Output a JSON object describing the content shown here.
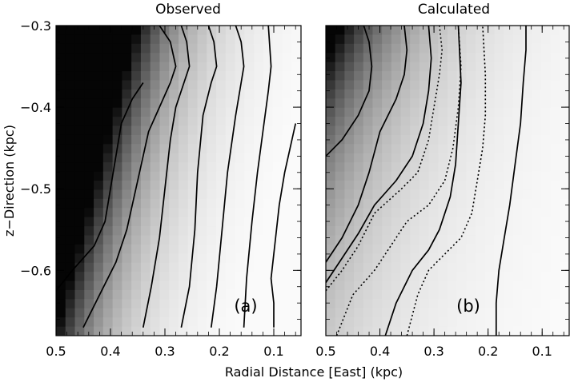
{
  "chart_data": [
    {
      "type": "heatmap",
      "title": "Observed",
      "panel_label": "(a)",
      "xlabel": "Radial Distance [East] (kpc)",
      "ylabel": "z−Direction (kpc)",
      "xlim": [
        0.5,
        0.05
      ],
      "ylim": [
        -0.68,
        -0.3
      ],
      "x_ticks": [
        "0.5",
        "0.4",
        "0.3",
        "0.2",
        "0.1"
      ],
      "y_ticks": [
        "−0.3",
        "−0.4",
        "−0.5",
        "−0.6"
      ],
      "x_tick_values": [
        0.5,
        0.4,
        0.3,
        0.2,
        0.1
      ],
      "y_tick_values": [
        -0.3,
        -0.4,
        -0.5,
        -0.6
      ],
      "grayscale": "dark = high intensity",
      "contour_style": "solid",
      "contours": [
        [
          [
            0.5,
            -0.625
          ],
          [
            0.47,
            -0.6
          ],
          [
            0.43,
            -0.57
          ],
          [
            0.41,
            -0.54
          ],
          [
            0.4,
            -0.5
          ],
          [
            0.39,
            -0.46
          ],
          [
            0.38,
            -0.42
          ],
          [
            0.36,
            -0.39
          ],
          [
            0.34,
            -0.37
          ]
        ],
        [
          [
            0.45,
            -0.67
          ],
          [
            0.42,
            -0.63
          ],
          [
            0.39,
            -0.59
          ],
          [
            0.37,
            -0.55
          ],
          [
            0.35,
            -0.49
          ],
          [
            0.33,
            -0.43
          ],
          [
            0.31,
            -0.4
          ],
          [
            0.29,
            -0.37
          ],
          [
            0.28,
            -0.35
          ],
          [
            0.29,
            -0.32
          ],
          [
            0.31,
            -0.3
          ]
        ],
        [
          [
            0.34,
            -0.67
          ],
          [
            0.325,
            -0.62
          ],
          [
            0.31,
            -0.56
          ],
          [
            0.3,
            -0.5
          ],
          [
            0.29,
            -0.44
          ],
          [
            0.28,
            -0.4
          ],
          [
            0.265,
            -0.37
          ],
          [
            0.255,
            -0.35
          ],
          [
            0.26,
            -0.32
          ],
          [
            0.27,
            -0.3
          ]
        ],
        [
          [
            0.27,
            -0.67
          ],
          [
            0.255,
            -0.62
          ],
          [
            0.245,
            -0.55
          ],
          [
            0.24,
            -0.48
          ],
          [
            0.23,
            -0.41
          ],
          [
            0.215,
            -0.37
          ],
          [
            0.205,
            -0.35
          ],
          [
            0.21,
            -0.32
          ],
          [
            0.22,
            -0.3
          ]
        ],
        [
          [
            0.215,
            -0.67
          ],
          [
            0.205,
            -0.62
          ],
          [
            0.195,
            -0.55
          ],
          [
            0.185,
            -0.48
          ],
          [
            0.17,
            -0.41
          ],
          [
            0.16,
            -0.37
          ],
          [
            0.155,
            -0.35
          ],
          [
            0.16,
            -0.32
          ],
          [
            0.17,
            -0.3
          ]
        ],
        [
          [
            0.155,
            -0.67
          ],
          [
            0.15,
            -0.61
          ],
          [
            0.14,
            -0.54
          ],
          [
            0.13,
            -0.48
          ],
          [
            0.12,
            -0.43
          ],
          [
            0.11,
            -0.38
          ],
          [
            0.105,
            -0.35
          ],
          [
            0.11,
            -0.3
          ]
        ],
        [
          [
            0.1,
            -0.67
          ],
          [
            0.1,
            -0.64
          ],
          [
            0.105,
            -0.61
          ],
          [
            0.1,
            -0.58
          ],
          [
            0.095,
            -0.55
          ],
          [
            0.09,
            -0.52
          ],
          [
            0.08,
            -0.48
          ],
          [
            0.07,
            -0.45
          ],
          [
            0.06,
            -0.42
          ]
        ]
      ]
    },
    {
      "type": "heatmap",
      "title": "Calculated",
      "panel_label": "(b)",
      "xlabel": "Radial Distance [East] (kpc)",
      "xlim": [
        0.5,
        0.05
      ],
      "ylim": [
        -0.68,
        -0.3
      ],
      "x_ticks": [
        "0.5",
        "0.4",
        "0.3",
        "0.2",
        "0.1"
      ],
      "x_tick_values": [
        0.5,
        0.4,
        0.3,
        0.2,
        0.1
      ],
      "grayscale": "dark = high intensity",
      "contours": [
        {
          "style": "solid",
          "points": [
            [
              0.5,
              -0.46
            ],
            [
              0.47,
              -0.44
            ],
            [
              0.44,
              -0.41
            ],
            [
              0.42,
              -0.38
            ],
            [
              0.415,
              -0.35
            ],
            [
              0.42,
              -0.32
            ],
            [
              0.43,
              -0.3
            ]
          ]
        },
        {
          "style": "solid",
          "points": [
            [
              0.5,
              -0.59
            ],
            [
              0.47,
              -0.56
            ],
            [
              0.44,
              -0.52
            ],
            [
              0.42,
              -0.48
            ],
            [
              0.4,
              -0.43
            ],
            [
              0.37,
              -0.39
            ],
            [
              0.355,
              -0.36
            ],
            [
              0.35,
              -0.33
            ],
            [
              0.355,
              -0.3
            ]
          ]
        },
        {
          "style": "dotted",
          "points": [
            [
              0.5,
              -0.625
            ],
            [
              0.47,
              -0.6
            ],
            [
              0.44,
              -0.57
            ],
            [
              0.41,
              -0.53
            ],
            [
              0.36,
              -0.5
            ],
            [
              0.33,
              -0.48
            ],
            [
              0.31,
              -0.44
            ],
            [
              0.3,
              -0.4
            ],
            [
              0.29,
              -0.36
            ],
            [
              0.285,
              -0.33
            ],
            [
              0.29,
              -0.3
            ]
          ]
        },
        {
          "style": "solid",
          "points": [
            [
              0.5,
              -0.615
            ],
            [
              0.47,
              -0.585
            ],
            [
              0.44,
              -0.555
            ],
            [
              0.41,
              -0.52
            ],
            [
              0.37,
              -0.49
            ],
            [
              0.34,
              -0.46
            ],
            [
              0.32,
              -0.42
            ],
            [
              0.31,
              -0.38
            ],
            [
              0.305,
              -0.34
            ],
            [
              0.31,
              -0.3
            ]
          ]
        },
        {
          "style": "dotted",
          "points": [
            [
              0.48,
              -0.68
            ],
            [
              0.45,
              -0.63
            ],
            [
              0.41,
              -0.6
            ],
            [
              0.38,
              -0.57
            ],
            [
              0.35,
              -0.54
            ],
            [
              0.31,
              -0.52
            ],
            [
              0.28,
              -0.49
            ],
            [
              0.265,
              -0.45
            ],
            [
              0.255,
              -0.4
            ],
            [
              0.25,
              -0.35
            ],
            [
              0.255,
              -0.3
            ]
          ]
        },
        {
          "style": "solid",
          "points": [
            [
              0.39,
              -0.68
            ],
            [
              0.37,
              -0.64
            ],
            [
              0.34,
              -0.6
            ],
            [
              0.31,
              -0.575
            ],
            [
              0.29,
              -0.55
            ],
            [
              0.27,
              -0.51
            ],
            [
              0.26,
              -0.47
            ],
            [
              0.255,
              -0.42
            ],
            [
              0.25,
              -0.37
            ],
            [
              0.255,
              -0.3
            ]
          ]
        },
        {
          "style": "dotted",
          "points": [
            [
              0.35,
              -0.68
            ],
            [
              0.33,
              -0.63
            ],
            [
              0.31,
              -0.6
            ],
            [
              0.28,
              -0.58
            ],
            [
              0.25,
              -0.56
            ],
            [
              0.23,
              -0.53
            ],
            [
              0.22,
              -0.49
            ],
            [
              0.21,
              -0.45
            ],
            [
              0.205,
              -0.41
            ],
            [
              0.205,
              -0.36
            ],
            [
              0.21,
              -0.3
            ]
          ]
        },
        {
          "style": "solid",
          "points": [
            [
              0.185,
              -0.68
            ],
            [
              0.185,
              -0.64
            ],
            [
              0.18,
              -0.6
            ],
            [
              0.17,
              -0.56
            ],
            [
              0.16,
              -0.52
            ],
            [
              0.15,
              -0.47
            ],
            [
              0.14,
              -0.42
            ],
            [
              0.135,
              -0.37
            ],
            [
              0.13,
              -0.33
            ],
            [
              0.13,
              -0.3
            ]
          ]
        }
      ]
    }
  ]
}
